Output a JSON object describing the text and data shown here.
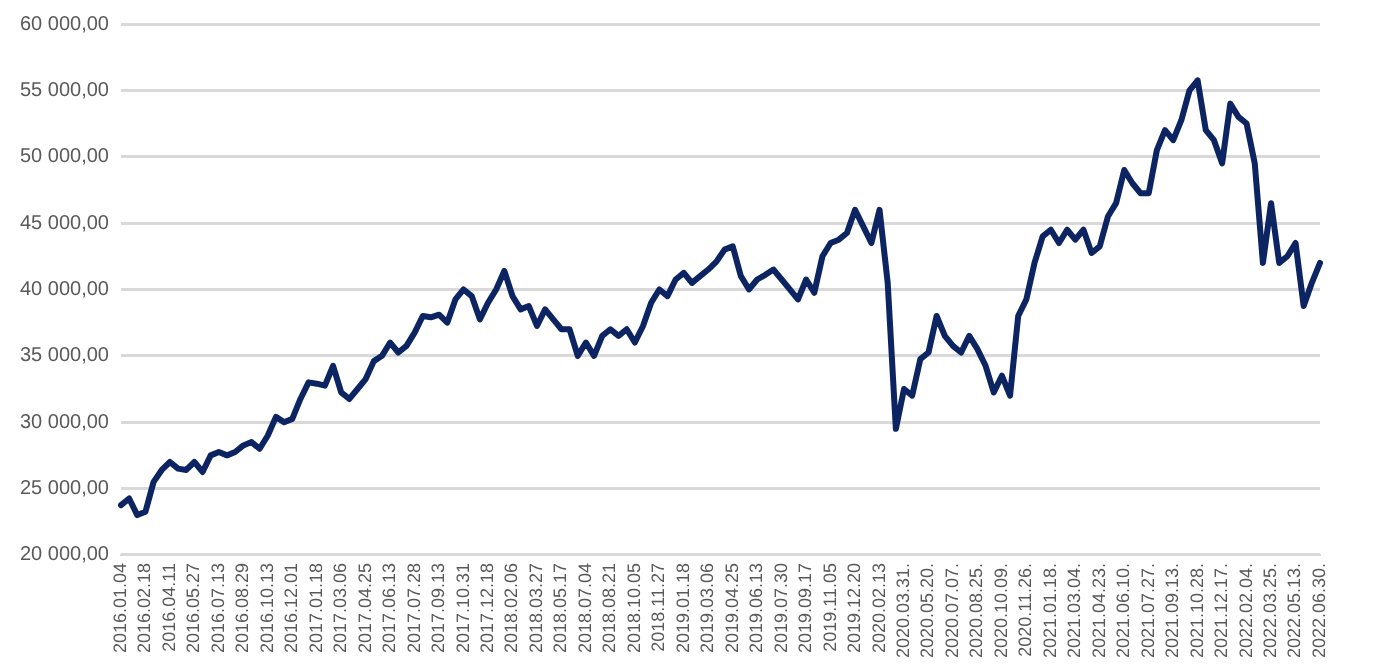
{
  "chart_data": {
    "type": "line",
    "categories": [
      "2016.01.04",
      null,
      null,
      "2016.02.18",
      null,
      null,
      "2016.04.11",
      null,
      null,
      "2016.05.27",
      null,
      null,
      "2016.07.13",
      null,
      null,
      "2016.08.29",
      null,
      null,
      "2016.10.13",
      null,
      null,
      "2016.12.01",
      null,
      null,
      "2017.01.18",
      null,
      null,
      "2017.03.06",
      null,
      null,
      "2017.04.25",
      null,
      null,
      "2017.06.13",
      null,
      null,
      "2017.07.28",
      null,
      null,
      "2017.09.13",
      null,
      null,
      "2017.10.31",
      null,
      null,
      "2017.12.18",
      null,
      null,
      "2018.02.06",
      null,
      null,
      "2018.03.27",
      null,
      null,
      "2018.05.17",
      null,
      null,
      "2018.07.04",
      null,
      null,
      "2018.08.21",
      null,
      null,
      "2018.10.05",
      null,
      null,
      "2018.11.27",
      null,
      null,
      "2019.01.18",
      null,
      null,
      "2019.03.06",
      null,
      null,
      "2019.04.25",
      null,
      null,
      "2019.06.13",
      null,
      null,
      "2019.07.30",
      null,
      null,
      "2019.09.17",
      null,
      null,
      "2019.11.05",
      null,
      null,
      "2019.12.20",
      null,
      null,
      "2020.02.13",
      null,
      null,
      "2020.03.31.",
      null,
      null,
      "2020.05.20.",
      null,
      null,
      "2020.07.07.",
      null,
      null,
      "2020.08.25.",
      null,
      null,
      "2020.10.09.",
      null,
      null,
      "2020.11.26.",
      null,
      null,
      "2021.01.18.",
      null,
      null,
      "2021.03.04.",
      null,
      null,
      "2021.04.23.",
      null,
      null,
      "2021.06.10.",
      null,
      null,
      "2021.07.27.",
      null,
      null,
      "2021.09.13.",
      null,
      null,
      "2021.10.28.",
      null,
      null,
      "2021.12.17.",
      null,
      null,
      "2022.02.04.",
      null,
      null,
      "2022.03.25.",
      null,
      null,
      "2022.05.13.",
      null,
      null,
      "2022.06.30."
    ],
    "series": [
      {
        "color": "#0c2461",
        "values": [
          23750,
          24250,
          23000,
          23250,
          25500,
          26400,
          27000,
          26500,
          26400,
          27000,
          26250,
          27500,
          27750,
          27500,
          27750,
          28250,
          28500,
          28000,
          29000,
          30400,
          30000,
          30250,
          31750,
          33000,
          32900,
          32750,
          34250,
          32250,
          31750,
          32500,
          33250,
          34600,
          35000,
          36000,
          35250,
          35750,
          36750,
          38000,
          37900,
          38100,
          37500,
          39250,
          40000,
          39500,
          37750,
          39000,
          40000,
          41400,
          39500,
          38500,
          38750,
          37250,
          38500,
          37750,
          37000,
          37000,
          35000,
          36000,
          35000,
          36500,
          37000,
          36500,
          37000,
          36000,
          37250,
          39000,
          40000,
          39500,
          40750,
          41250,
          40500,
          41000,
          41500,
          42100,
          43000,
          43250,
          41000,
          40000,
          40750,
          41100,
          41500,
          40750,
          40000,
          39250,
          40750,
          39750,
          42500,
          43500,
          43750,
          44250,
          46000,
          44750,
          43500,
          46000,
          40500,
          29500,
          32500,
          32000,
          34750,
          35250,
          38000,
          36500,
          35750,
          35250,
          36500,
          35500,
          34250,
          32250,
          33500,
          32000,
          38000,
          39250,
          42000,
          44000,
          44500,
          43500,
          44500,
          43750,
          44500,
          42750,
          43250,
          45500,
          46500,
          49000,
          48000,
          47250,
          47250,
          50500,
          52000,
          51250,
          52750,
          55000,
          55750,
          52000,
          51250,
          49500,
          54000,
          53000,
          52500,
          49500,
          42000,
          46500,
          42000,
          42500,
          43500,
          38750,
          40500,
          42000
        ]
      }
    ],
    "ylim": [
      20000,
      60000
    ],
    "yticks": [
      {
        "value": 20000,
        "label": "20 000,00"
      },
      {
        "value": 25000,
        "label": "25 000,00"
      },
      {
        "value": 30000,
        "label": "30 000,00"
      },
      {
        "value": 35000,
        "label": "35 000,00"
      },
      {
        "value": 40000,
        "label": "40 000,00"
      },
      {
        "value": 45000,
        "label": "45 000,00"
      },
      {
        "value": 50000,
        "label": "50 000,00"
      },
      {
        "value": 55000,
        "label": "55 000,00"
      },
      {
        "value": 60000,
        "label": "60 000,00"
      }
    ],
    "grid": "y",
    "marker": "none",
    "line_style": "solid"
  }
}
